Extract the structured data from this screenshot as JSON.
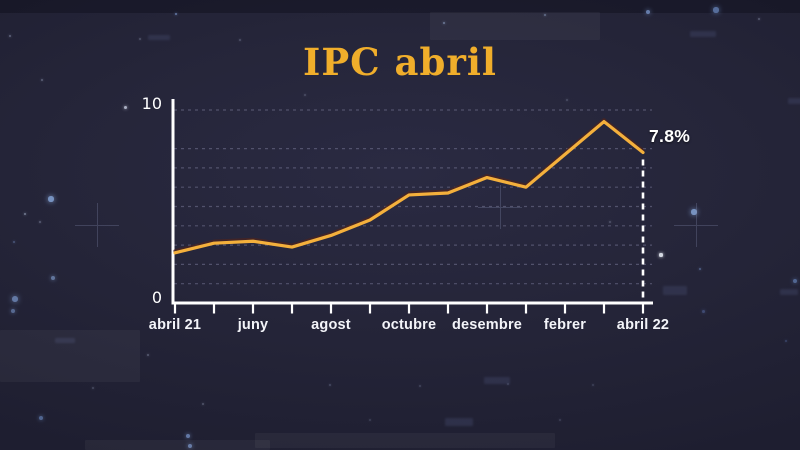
{
  "title": "IPC abril",
  "colors": {
    "background": "#242338",
    "title_gold": "#f0ae2b",
    "line_gold": "#f4b03c",
    "line_shadow": "#4a2420",
    "axis_white": "#ffffff",
    "gridline": "#575772",
    "tick_label": "#f3f4f9",
    "annotation_white": "#ffffff",
    "star_blue": "#7c98c8"
  },
  "chart_data": {
    "type": "line",
    "title": "IPC abril",
    "x_tick_count": 13,
    "x_labels": [
      {
        "text": "abril 21",
        "tick": 0
      },
      {
        "text": "juny",
        "tick": 2
      },
      {
        "text": "agost",
        "tick": 4
      },
      {
        "text": "octubre",
        "tick": 6
      },
      {
        "text": "desembre",
        "tick": 8
      },
      {
        "text": "febrer",
        "tick": 10
      },
      {
        "text": "abril 22",
        "tick": 12
      }
    ],
    "values": [
      2.6,
      3.1,
      3.2,
      2.9,
      3.5,
      4.3,
      5.6,
      5.7,
      6.5,
      6.0,
      7.7,
      9.4,
      7.8
    ],
    "unit": "%",
    "ylim": [
      0,
      10
    ],
    "y_tick_labels": [
      "10",
      "0"
    ],
    "gridline_values": [
      1,
      2,
      3,
      4,
      5,
      6,
      7,
      8,
      10
    ],
    "grid_style": "dashed",
    "legend": "none",
    "annotation": {
      "text": "7.8%",
      "tick": 12,
      "value": 7.8
    }
  }
}
